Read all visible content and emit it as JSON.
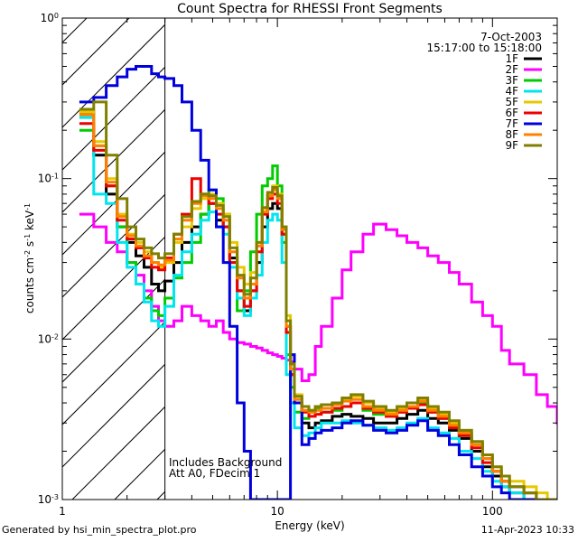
{
  "chart_data": {
    "type": "line",
    "title": "Count Spectra for RHESSI Front Segments",
    "date": "7-Oct-2003",
    "time_range": "15:17:00 to 15:18:00",
    "xlabel": "Energy (keV)",
    "ylabel": "counts cm<sup>-2</sup> s<sup>-1</sup> keV<sup>-1</sup>",
    "xscale": "log",
    "yscale": "log",
    "xlim": [
      1,
      200
    ],
    "ylim": [
      0.001,
      1
    ],
    "x_ticks": [
      {
        "value": 1,
        "label": "1"
      },
      {
        "value": 10,
        "label": "10"
      },
      {
        "value": 100,
        "label": "100"
      }
    ],
    "y_ticks": [
      {
        "value": 0.001,
        "label": "10<sup>-3</sup>"
      },
      {
        "value": 0.01,
        "label": "10<sup>-2</sup>"
      },
      {
        "value": 0.1,
        "label": "10<sup>-1</sup>"
      },
      {
        "value": 1,
        "label": "10<sup>0</sup>"
      }
    ],
    "hatched_region": {
      "x_from": 1,
      "x_to": 3
    },
    "annotations": [
      "Includes Background",
      "Att A0, FDecim 1"
    ],
    "legend_position": "top-right",
    "series": [
      {
        "name": "1F",
        "color": "#000000",
        "x": [
          1.2,
          1.4,
          1.6,
          1.8,
          2.0,
          2.2,
          2.4,
          2.6,
          2.8,
          3.0,
          3.3,
          3.6,
          4.0,
          4.4,
          4.8,
          5.2,
          5.6,
          6.0,
          6.5,
          7.0,
          7.5,
          8.0,
          8.5,
          9.0,
          9.5,
          10.0,
          10.5,
          11.0,
          11.5,
          12.0,
          13,
          14,
          15,
          16,
          18,
          20,
          22,
          25,
          28,
          32,
          36,
          40,
          45,
          50,
          56,
          63,
          70,
          80,
          90,
          100,
          110,
          120,
          140,
          160,
          180,
          200
        ],
        "y": [
          0.26,
          0.14,
          0.08,
          0.05,
          0.04,
          0.033,
          0.028,
          0.022,
          0.02,
          0.023,
          0.03,
          0.04,
          0.05,
          0.06,
          0.07,
          0.055,
          0.05,
          0.032,
          0.02,
          0.015,
          0.02,
          0.03,
          0.05,
          0.065,
          0.07,
          0.065,
          0.045,
          0.012,
          0.006,
          0.004,
          0.003,
          0.0028,
          0.003,
          0.0031,
          0.0033,
          0.0034,
          0.0033,
          0.0032,
          0.003,
          0.003,
          0.0032,
          0.0034,
          0.0036,
          0.0032,
          0.003,
          0.0027,
          0.0024,
          0.002,
          0.0016,
          0.0014,
          0.0012,
          0.0011,
          0.001,
          0.001,
          0.001,
          0.001
        ]
      },
      {
        "name": "2F",
        "color": "#ff00ff",
        "x": [
          1.2,
          1.4,
          1.6,
          1.8,
          2.0,
          2.2,
          2.4,
          2.6,
          2.8,
          3.0,
          3.3,
          3.6,
          4.0,
          4.4,
          4.8,
          5.2,
          5.6,
          6.0,
          6.5,
          7.0,
          7.5,
          8.0,
          8.5,
          9.0,
          9.5,
          10.0,
          10.5,
          11.0,
          11.5,
          12.0,
          13,
          14,
          15,
          16,
          18,
          20,
          22,
          25,
          28,
          32,
          36,
          40,
          45,
          50,
          56,
          63,
          70,
          80,
          90,
          100,
          110,
          120,
          140,
          160,
          180,
          200
        ],
        "y": [
          0.06,
          0.05,
          0.04,
          0.035,
          0.03,
          0.025,
          0.02,
          0.016,
          0.013,
          0.012,
          0.013,
          0.016,
          0.014,
          0.013,
          0.012,
          0.013,
          0.011,
          0.01,
          0.0095,
          0.0093,
          0.009,
          0.0088,
          0.0085,
          0.0082,
          0.008,
          0.0078,
          0.0076,
          0.0074,
          0.0072,
          0.0065,
          0.0055,
          0.006,
          0.009,
          0.012,
          0.018,
          0.027,
          0.035,
          0.045,
          0.052,
          0.048,
          0.044,
          0.04,
          0.037,
          0.033,
          0.03,
          0.026,
          0.022,
          0.017,
          0.014,
          0.012,
          0.0085,
          0.007,
          0.006,
          0.0045,
          0.0038,
          0.003
        ]
      },
      {
        "name": "3F",
        "color": "#00cc00",
        "x": [
          1.2,
          1.4,
          1.6,
          1.8,
          2.0,
          2.2,
          2.4,
          2.6,
          2.8,
          3.0,
          3.3,
          3.6,
          4.0,
          4.4,
          4.8,
          5.2,
          5.6,
          6.0,
          6.5,
          7.0,
          7.5,
          8.0,
          8.5,
          9.0,
          9.5,
          10.0,
          10.5,
          11.0,
          11.5,
          12.0,
          13,
          14,
          15,
          16,
          18,
          20,
          22,
          25,
          28,
          32,
          36,
          40,
          45,
          50,
          56,
          63,
          70,
          80,
          90,
          100,
          110,
          120,
          140,
          160,
          180,
          200
        ],
        "y": [
          0.2,
          0.16,
          0.09,
          0.05,
          0.03,
          0.022,
          0.018,
          0.015,
          0.014,
          0.018,
          0.024,
          0.03,
          0.04,
          0.06,
          0.085,
          0.075,
          0.06,
          0.03,
          0.015,
          0.02,
          0.035,
          0.06,
          0.09,
          0.1,
          0.12,
          0.09,
          0.04,
          0.008,
          0.005,
          0.0035,
          0.0032,
          0.0035,
          0.0037,
          0.0035,
          0.0036,
          0.0038,
          0.004,
          0.0036,
          0.0034,
          0.0033,
          0.0035,
          0.0038,
          0.004,
          0.0035,
          0.0032,
          0.0029,
          0.0026,
          0.0022,
          0.0018,
          0.0015,
          0.0013,
          0.0012,
          0.0011,
          0.001,
          0.001,
          0.001
        ]
      },
      {
        "name": "4F",
        "color": "#00e5ee",
        "x": [
          1.2,
          1.4,
          1.6,
          1.8,
          2.0,
          2.2,
          2.4,
          2.6,
          2.8,
          3.0,
          3.3,
          3.6,
          4.0,
          4.4,
          4.8,
          5.2,
          5.6,
          6.0,
          6.5,
          7.0,
          7.5,
          8.0,
          8.5,
          9.0,
          9.5,
          10.0,
          10.5,
          11.0,
          11.5,
          12.0,
          13,
          14,
          15,
          16,
          18,
          20,
          22,
          25,
          28,
          32,
          36,
          40,
          45,
          50,
          56,
          63,
          70,
          80,
          90,
          100,
          110,
          120,
          140,
          160,
          180,
          200
        ],
        "y": [
          0.24,
          0.08,
          0.07,
          0.04,
          0.028,
          0.022,
          0.017,
          0.013,
          0.012,
          0.016,
          0.025,
          0.035,
          0.045,
          0.055,
          0.062,
          0.05,
          0.045,
          0.028,
          0.018,
          0.014,
          0.018,
          0.025,
          0.04,
          0.055,
          0.06,
          0.055,
          0.03,
          0.006,
          0.004,
          0.0028,
          0.0025,
          0.0026,
          0.0028,
          0.003,
          0.003,
          0.0031,
          0.003,
          0.0029,
          0.0028,
          0.0027,
          0.0028,
          0.003,
          0.0032,
          0.0028,
          0.0026,
          0.0024,
          0.002,
          0.0018,
          0.0015,
          0.0013,
          0.0012,
          0.0011,
          0.001,
          0.001,
          0.001,
          0.001
        ]
      },
      {
        "name": "5F",
        "color": "#e6c800",
        "x": [
          1.2,
          1.4,
          1.6,
          1.8,
          2.0,
          2.2,
          2.4,
          2.6,
          2.8,
          3.0,
          3.3,
          3.6,
          4.0,
          4.4,
          4.8,
          5.2,
          5.6,
          6.0,
          6.5,
          7.0,
          7.5,
          8.0,
          8.5,
          9.0,
          9.5,
          10.0,
          10.5,
          11.0,
          11.5,
          12.0,
          13,
          14,
          15,
          16,
          18,
          20,
          22,
          25,
          28,
          32,
          36,
          40,
          45,
          50,
          56,
          63,
          70,
          80,
          90,
          100,
          110,
          120,
          140,
          160,
          180,
          200
        ],
        "y": [
          0.26,
          0.17,
          0.1,
          0.06,
          0.045,
          0.04,
          0.035,
          0.03,
          0.028,
          0.03,
          0.04,
          0.05,
          0.065,
          0.075,
          0.08,
          0.07,
          0.06,
          0.04,
          0.028,
          0.022,
          0.026,
          0.04,
          0.065,
          0.08,
          0.09,
          0.08,
          0.05,
          0.014,
          0.007,
          0.0045,
          0.0038,
          0.0036,
          0.0038,
          0.0039,
          0.004,
          0.0042,
          0.0044,
          0.004,
          0.0037,
          0.0035,
          0.0037,
          0.004,
          0.0042,
          0.0037,
          0.0034,
          0.003,
          0.0027,
          0.0022,
          0.0019,
          0.0016,
          0.0014,
          0.0013,
          0.0012,
          0.0011,
          0.001,
          0.001
        ]
      },
      {
        "name": "6F",
        "color": "#ee0000",
        "x": [
          1.2,
          1.4,
          1.6,
          1.8,
          2.0,
          2.2,
          2.4,
          2.6,
          2.8,
          3.0,
          3.3,
          3.6,
          4.0,
          4.4,
          4.8,
          5.2,
          5.6,
          6.0,
          6.5,
          7.0,
          7.5,
          8.0,
          8.5,
          9.0,
          9.5,
          10.0,
          10.5,
          11.0,
          11.5,
          12.0,
          13,
          14,
          15,
          16,
          18,
          20,
          22,
          25,
          28,
          32,
          36,
          40,
          45,
          50,
          56,
          63,
          70,
          80,
          90,
          100,
          110,
          120,
          140,
          160,
          180,
          200
        ],
        "y": [
          0.22,
          0.15,
          0.09,
          0.055,
          0.042,
          0.037,
          0.032,
          0.028,
          0.027,
          0.032,
          0.045,
          0.06,
          0.1,
          0.08,
          0.07,
          0.06,
          0.05,
          0.03,
          0.02,
          0.016,
          0.02,
          0.035,
          0.06,
          0.075,
          0.08,
          0.07,
          0.045,
          0.011,
          0.006,
          0.004,
          0.0035,
          0.0033,
          0.0034,
          0.0035,
          0.0037,
          0.0038,
          0.004,
          0.0037,
          0.0035,
          0.0033,
          0.0035,
          0.0037,
          0.0039,
          0.0035,
          0.0032,
          0.0028,
          0.0025,
          0.0021,
          0.0017,
          0.0015,
          0.0013,
          0.0012,
          0.0011,
          0.001,
          0.001,
          0.001
        ]
      },
      {
        "name": "7F",
        "color": "#0000dd",
        "x": [
          1.2,
          1.4,
          1.6,
          1.8,
          2.0,
          2.2,
          2.4,
          2.6,
          2.8,
          3.0,
          3.3,
          3.6,
          4.0,
          4.4,
          4.8,
          5.2,
          5.6,
          6.0,
          6.5,
          7.0,
          7.5,
          8.0,
          8.5,
          9.0,
          9.5,
          10.0,
          10.5,
          11.0,
          11.5,
          12.0,
          13,
          14,
          15,
          16,
          18,
          20,
          22,
          25,
          28,
          32,
          36,
          40,
          45,
          50,
          56,
          63,
          70,
          80,
          90,
          100,
          110,
          120,
          140,
          160,
          180,
          200
        ],
        "y": [
          0.3,
          0.32,
          0.38,
          0.43,
          0.48,
          0.5,
          0.5,
          0.45,
          0.43,
          0.42,
          0.38,
          0.3,
          0.2,
          0.13,
          0.085,
          0.05,
          0.03,
          0.012,
          0.004,
          0.002,
          0.001,
          0.001,
          0.001,
          0.001,
          0.001,
          0.001,
          0.001,
          0.001,
          0.008,
          0.004,
          0.0022,
          0.0024,
          0.0026,
          0.0027,
          0.0028,
          0.003,
          0.0031,
          0.0029,
          0.0027,
          0.0026,
          0.0027,
          0.0029,
          0.0031,
          0.0027,
          0.0025,
          0.0022,
          0.0019,
          0.0016,
          0.0014,
          0.0012,
          0.0011,
          0.001,
          0.001,
          0.001,
          0.001,
          0.001
        ]
      },
      {
        "name": "8F",
        "color": "#ff7f00",
        "x": [
          1.2,
          1.4,
          1.6,
          1.8,
          2.0,
          2.2,
          2.4,
          2.6,
          2.8,
          3.0,
          3.3,
          3.6,
          4.0,
          4.4,
          4.8,
          5.2,
          5.6,
          6.0,
          6.5,
          7.0,
          7.5,
          8.0,
          8.5,
          9.0,
          9.5,
          10.0,
          10.5,
          11.0,
          11.5,
          12.0,
          13,
          14,
          15,
          16,
          18,
          20,
          22,
          25,
          28,
          32,
          36,
          40,
          45,
          50,
          56,
          63,
          70,
          80,
          90,
          100,
          110,
          120,
          140,
          160,
          180,
          200
        ],
        "y": [
          0.25,
          0.16,
          0.095,
          0.058,
          0.044,
          0.038,
          0.033,
          0.03,
          0.029,
          0.031,
          0.042,
          0.055,
          0.07,
          0.078,
          0.075,
          0.065,
          0.055,
          0.035,
          0.024,
          0.018,
          0.022,
          0.038,
          0.062,
          0.078,
          0.085,
          0.075,
          0.048,
          0.012,
          0.0065,
          0.0042,
          0.0036,
          0.0035,
          0.0036,
          0.0037,
          0.0039,
          0.0041,
          0.0042,
          0.0038,
          0.0036,
          0.0034,
          0.0036,
          0.0038,
          0.0041,
          0.0036,
          0.0033,
          0.0029,
          0.0026,
          0.0022,
          0.0018,
          0.0015,
          0.0013,
          0.0012,
          0.0011,
          0.001,
          0.001,
          0.001
        ]
      },
      {
        "name": "9F",
        "color": "#808000",
        "x": [
          1.2,
          1.4,
          1.6,
          1.8,
          2.0,
          2.2,
          2.4,
          2.6,
          2.8,
          3.0,
          3.3,
          3.6,
          4.0,
          4.4,
          4.8,
          5.2,
          5.6,
          6.0,
          6.5,
          7.0,
          7.5,
          8.0,
          8.5,
          9.0,
          9.5,
          10.0,
          10.5,
          11.0,
          11.5,
          12.0,
          13,
          14,
          15,
          16,
          18,
          20,
          22,
          25,
          28,
          32,
          36,
          40,
          45,
          50,
          56,
          63,
          70,
          80,
          90,
          100,
          110,
          120,
          140,
          160,
          180,
          200
        ],
        "y": [
          0.27,
          0.3,
          0.14,
          0.075,
          0.05,
          0.042,
          0.037,
          0.034,
          0.032,
          0.034,
          0.045,
          0.058,
          0.072,
          0.08,
          0.078,
          0.068,
          0.058,
          0.037,
          0.025,
          0.019,
          0.024,
          0.04,
          0.066,
          0.082,
          0.088,
          0.078,
          0.05,
          0.013,
          0.007,
          0.0044,
          0.0038,
          0.0036,
          0.0038,
          0.0039,
          0.004,
          0.0043,
          0.0045,
          0.0041,
          0.0038,
          0.0036,
          0.0038,
          0.004,
          0.0043,
          0.0038,
          0.0035,
          0.0031,
          0.0027,
          0.0023,
          0.0019,
          0.0016,
          0.0014,
          0.0012,
          0.0011,
          0.001,
          0.001,
          0.001
        ]
      }
    ]
  },
  "footer": {
    "generated_by": "Generated by hsi_min_spectra_plot.pro",
    "timestamp": "11-Apr-2023 10:33"
  }
}
